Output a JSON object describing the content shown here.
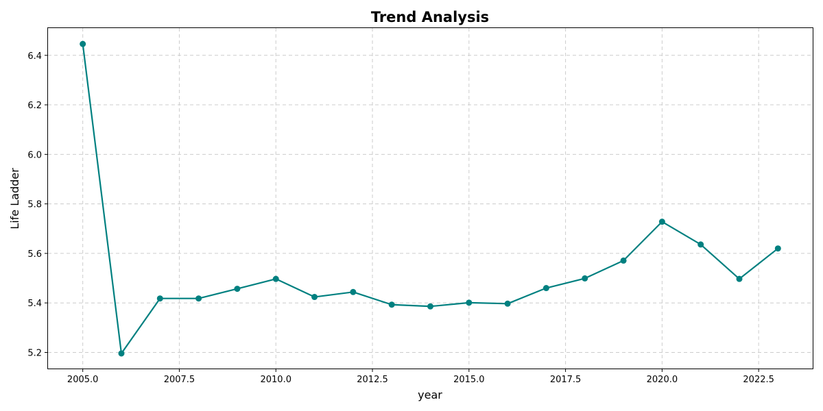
{
  "chart_data": {
    "type": "line",
    "title": "Trend Analysis",
    "xlabel": "year",
    "ylabel": "Life Ladder",
    "xlim": [
      2004.1,
      2023.9
    ],
    "ylim": [
      5.135,
      6.51
    ],
    "x_ticks": [
      2005.0,
      2007.5,
      2010.0,
      2012.5,
      2015.0,
      2017.5,
      2020.0,
      2022.5
    ],
    "x_tick_labels": [
      "2005.0",
      "2007.5",
      "2010.0",
      "2012.5",
      "2015.0",
      "2017.5",
      "2020.0",
      "2022.5"
    ],
    "y_ticks": [
      5.2,
      5.4,
      5.6,
      5.8,
      6.0,
      6.2,
      6.4
    ],
    "y_tick_labels": [
      "5.2",
      "5.4",
      "5.6",
      "5.8",
      "6.0",
      "6.2",
      "6.4"
    ],
    "grid": true,
    "series": [
      {
        "color": "#008080",
        "marker": "circle",
        "x": [
          2005,
          2006,
          2007,
          2008,
          2009,
          2010,
          2011,
          2012,
          2013,
          2014,
          2015,
          2016,
          2017,
          2018,
          2019,
          2020,
          2021,
          2022,
          2023
        ],
        "values": [
          6.446,
          5.196,
          5.418,
          5.418,
          5.457,
          5.497,
          5.424,
          5.444,
          5.393,
          5.386,
          5.401,
          5.397,
          5.46,
          5.499,
          5.571,
          5.728,
          5.636,
          5.497,
          5.62
        ]
      }
    ]
  }
}
